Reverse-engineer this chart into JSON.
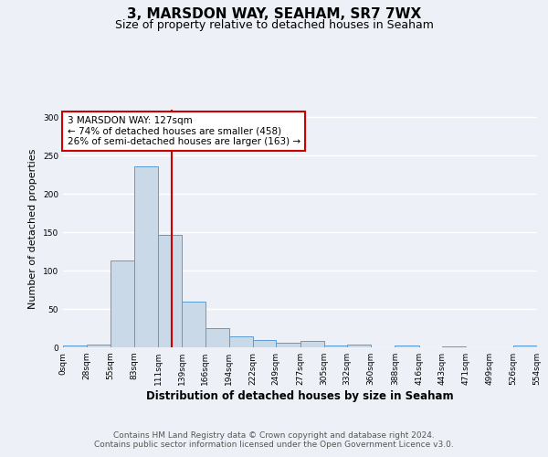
{
  "title1": "3, MARSDON WAY, SEAHAM, SR7 7WX",
  "title2": "Size of property relative to detached houses in Seaham",
  "xlabel": "Distribution of detached houses by size in Seaham",
  "ylabel": "Number of detached properties",
  "bin_edges": [
    0,
    28,
    55,
    83,
    111,
    139,
    166,
    194,
    222,
    249,
    277,
    305,
    332,
    360,
    388,
    416,
    443,
    471,
    499,
    526,
    554
  ],
  "bar_heights": [
    2,
    3,
    113,
    236,
    147,
    60,
    25,
    14,
    10,
    6,
    8,
    2,
    4,
    0,
    2,
    0,
    1,
    0,
    0,
    2
  ],
  "bar_color": "#c9d9e8",
  "bar_edge_color": "#5b9bd5",
  "property_size": 127,
  "red_line_color": "#cc0000",
  "annotation_line1": "3 MARSDON WAY: 127sqm",
  "annotation_line2": "← 74% of detached houses are smaller (458)",
  "annotation_line3": "26% of semi-detached houses are larger (163) →",
  "annotation_box_color": "#ffffff",
  "annotation_box_edge": "#cc0000",
  "ylim": [
    0,
    310
  ],
  "yticks": [
    0,
    50,
    100,
    150,
    200,
    250,
    300
  ],
  "x_tick_labels": [
    "0sqm",
    "28sqm",
    "55sqm",
    "83sqm",
    "111sqm",
    "139sqm",
    "166sqm",
    "194sqm",
    "222sqm",
    "249sqm",
    "277sqm",
    "305sqm",
    "332sqm",
    "360sqm",
    "388sqm",
    "416sqm",
    "443sqm",
    "471sqm",
    "499sqm",
    "526sqm",
    "554sqm"
  ],
  "footer1": "Contains HM Land Registry data © Crown copyright and database right 2024.",
  "footer2": "Contains public sector information licensed under the Open Government Licence v3.0.",
  "background_color": "#edf1f7",
  "grid_color": "#ffffff",
  "title1_fontsize": 11,
  "title2_fontsize": 9,
  "xlabel_fontsize": 8.5,
  "ylabel_fontsize": 8,
  "tick_fontsize": 6.5,
  "footer_fontsize": 6.5,
  "annotation_fontsize": 7.5
}
